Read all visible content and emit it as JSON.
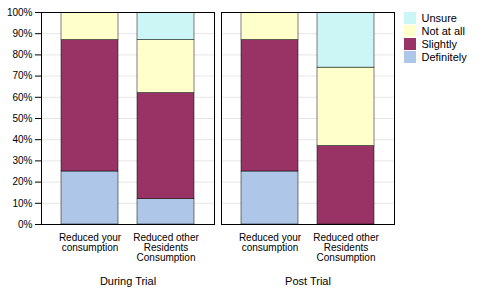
{
  "chart_data": {
    "type": "bar",
    "stacked": true,
    "categories": [
      "Reduced your\nconsumption",
      "Reduced other\nResidents\nConsumption",
      "Reduced your\nconsumption",
      "Reduced other\nResidents\nConsumption"
    ],
    "groups": [
      "During Trial",
      "During Trial",
      "Post Trial",
      "Post Trial"
    ],
    "series": [
      {
        "name": "Definitely",
        "color": "#aec6e8",
        "values": [
          25,
          12,
          25,
          0
        ]
      },
      {
        "name": "Slightly",
        "color": "#993366",
        "values": [
          62,
          50,
          62,
          37
        ]
      },
      {
        "name": "Not at all",
        "color": "#ffffcc",
        "values": [
          13,
          25,
          13,
          37
        ]
      },
      {
        "name": "Unsure",
        "color": "#ccf5f5",
        "values": [
          0,
          13,
          0,
          26
        ]
      }
    ],
    "ylim": [
      0,
      100
    ],
    "yticks": [
      {
        "value": 0,
        "label": "0%"
      },
      {
        "value": 10,
        "label": "10%"
      },
      {
        "value": 20,
        "label": "20%"
      },
      {
        "value": 30,
        "label": "30%"
      },
      {
        "value": 40,
        "label": "40%"
      },
      {
        "value": 50,
        "label": "50%"
      },
      {
        "value": 60,
        "label": "60%"
      },
      {
        "value": 70,
        "label": "70%"
      },
      {
        "value": 80,
        "label": "80%"
      },
      {
        "value": 90,
        "label": "90%"
      },
      {
        "value": 100,
        "label": "100%"
      }
    ],
    "grid": true,
    "legend": "right"
  }
}
